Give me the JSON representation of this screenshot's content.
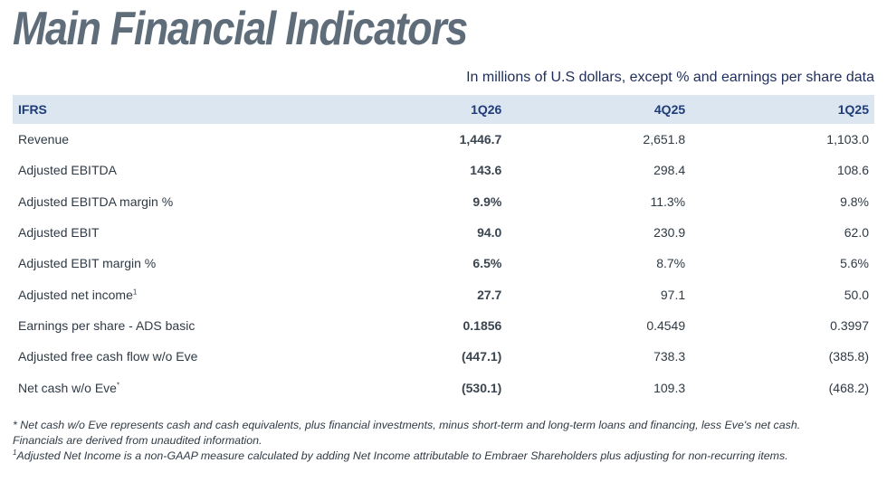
{
  "title": "Main Financial Indicators",
  "subtitle": "In millions of U.S dollars, except % and earnings per share data",
  "table": {
    "headers": [
      "IFRS",
      "1Q26",
      "4Q25",
      "1Q25"
    ],
    "rows": [
      {
        "label": "Revenue",
        "sup": "",
        "values": [
          "1,446.7",
          "2,651.8",
          "1,103.0"
        ]
      },
      {
        "label": "Adjusted EBITDA",
        "sup": "",
        "values": [
          "143.6",
          "298.4",
          "108.6"
        ]
      },
      {
        "label": "Adjusted EBITDA margin %",
        "sup": "",
        "values": [
          "9.9%",
          "11.3%",
          "9.8%"
        ]
      },
      {
        "label": "Adjusted EBIT",
        "sup": "",
        "values": [
          "94.0",
          "230.9",
          "62.0"
        ]
      },
      {
        "label": "Adjusted EBIT margin %",
        "sup": "",
        "values": [
          "6.5%",
          "8.7%",
          "5.6%"
        ]
      },
      {
        "label": "Adjusted net income",
        "sup": "1",
        "values": [
          "27.7",
          "97.1",
          "50.0"
        ]
      },
      {
        "label": "Earnings per share - ADS basic",
        "sup": "",
        "values": [
          "0.1856",
          "0.4549",
          "0.3997"
        ]
      },
      {
        "label": "Adjusted free cash flow w/o Eve",
        "sup": "",
        "values": [
          "(447.1)",
          "738.3",
          "(385.8)"
        ]
      },
      {
        "label": "Net cash w/o Eve",
        "sup": "*",
        "values": [
          "(530.1)",
          "109.3",
          "(468.2)"
        ]
      }
    ]
  },
  "notes": {
    "line1": "* Net cash w/o Eve represents cash and cash equivalents, plus financial investments, minus short-term and long-term loans and financing, less Eve's net cash.",
    "line2": "Financials are derived from unaudited information.",
    "line3_sup": "1",
    "line3": "Adjusted Net Income is a non-GAAP measure calculated by adding Net Income attributable to Embraer Shareholders plus adjusting for non-recurring items."
  }
}
